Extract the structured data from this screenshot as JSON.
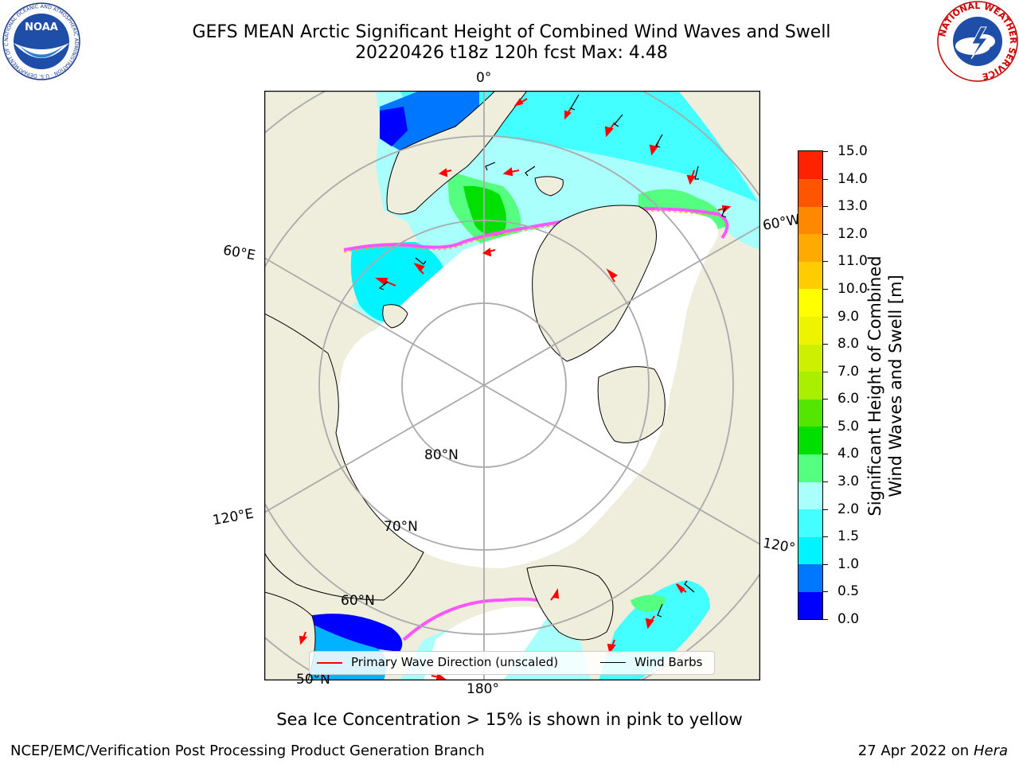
{
  "header": {
    "title_line1": "GEFS MEAN Arctic Significant Height of Combined Wind Waves and Swell",
    "title_line2": "20220426 t18z 120h fcst   Max: 4.48"
  },
  "map": {
    "longitude_labels": [
      "0°",
      "60°E",
      "120°E",
      "180°",
      "120°",
      "60°W"
    ],
    "latitude_labels": [
      "80°N",
      "70°N",
      "60°N",
      "50°N"
    ],
    "colors": {
      "land": "#efeedc",
      "ice": "#ffffff",
      "ocean_wave_low": "#00b2ff",
      "ocean_wave_mid": "#a8fffb",
      "ocean_wave_high": "#00e000",
      "ice_edge": "#ff55ff",
      "primary_wave_arrow": "#ff0000",
      "wind_barb": "#000000"
    }
  },
  "legend": {
    "primary_wave_label": "Primary Wave Direction (unscaled)",
    "wind_barbs_label": "Wind Barbs"
  },
  "colorbar": {
    "title_line1": "Significant Height of Combined",
    "title_line2": "Wind Waves and Swell [m]",
    "levels": [
      "0.0",
      "0.5",
      "1.0",
      "1.5",
      "2.0",
      "3.0",
      "4.0",
      "5.0",
      "6.0",
      "7.0",
      "8.0",
      "9.0",
      "10.0",
      "11.0",
      "12.0",
      "13.0",
      "14.0",
      "15.0"
    ],
    "colors": [
      "#0000ff",
      "#0077ff",
      "#00f4ff",
      "#44ffff",
      "#a8fffb",
      "#55ff80",
      "#00e000",
      "#55e600",
      "#aaee00",
      "#ccf000",
      "#eef400",
      "#ffff00",
      "#ffcc00",
      "#ffaa00",
      "#ff8800",
      "#ff5500",
      "#ff2200"
    ]
  },
  "notes": {
    "ice_note": "Sea Ice Concentration > 15% is shown in pink to yellow"
  },
  "footer": {
    "left": "NCEP/EMC/Verification Post Processing Product Generation Branch",
    "date": "27 Apr 2022 on",
    "machine": "Hera"
  },
  "logos": {
    "noaa_text": "NOAA",
    "noaa_ring_text": "NATIONAL OCEANIC AND ATMOSPHERIC ADMINISTRATION · U.S. DEPARTMENT OF COMMERCE",
    "nws_ring_text": "NATIONAL WEATHER SERVICE"
  }
}
